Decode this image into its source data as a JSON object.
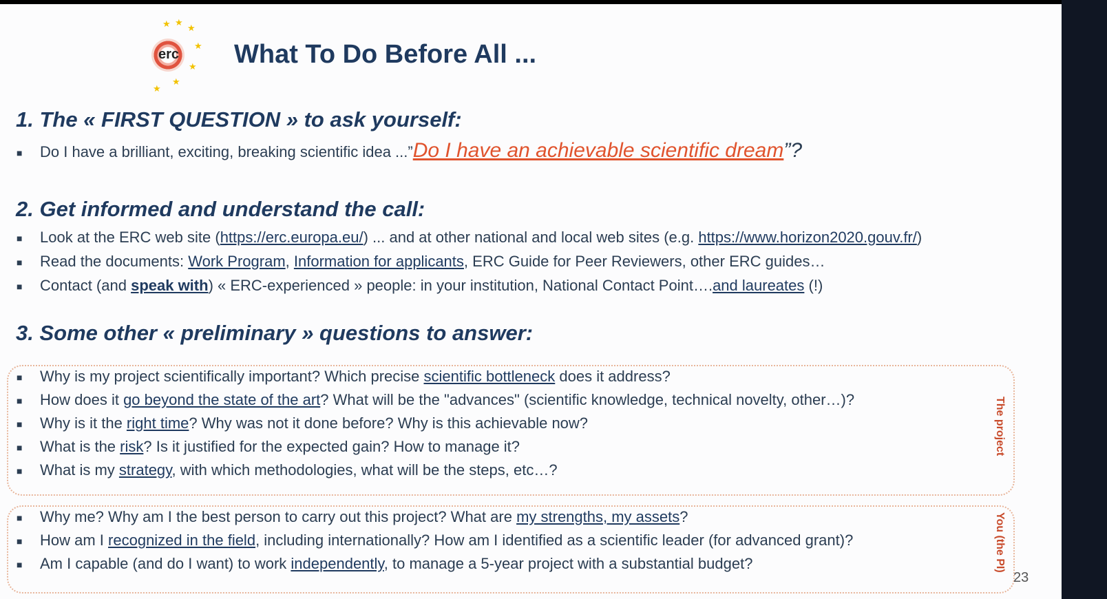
{
  "logo": {
    "text": "erc"
  },
  "title": "What To Do Before All ...",
  "section1": {
    "heading": "1. The « FIRST QUESTION » to ask yourself:",
    "bullet": {
      "text": "Do I have a brilliant, exciting, breaking scientific idea ...”",
      "highlight": "Do I have an achievable scientific dream",
      "suffix": "”?"
    }
  },
  "section2": {
    "heading": "2. Get informed and understand the call:",
    "b1": {
      "pre": "Look at the ERC web site (",
      "link1": "https://erc.europa.eu/",
      "mid": ") ... and at other national and local web sites (e.g. ",
      "link2": "https://www.horizon2020.gouv.fr/",
      "post": ")"
    },
    "b2": {
      "pre": "Read the documents: ",
      "link1": "Work Program",
      "sep": ", ",
      "link2": "Information for applicants",
      "post": ", ERC Guide for Peer Reviewers, other ERC guides…"
    },
    "b3": {
      "pre": "Contact (and ",
      "link1": "speak with",
      "mid": ") « ERC-experienced » people: in your institution, National Contact Point….",
      "link2": "and laureates",
      "post": " (!)"
    }
  },
  "section3": {
    "heading": "3. Some other « preliminary » questions to answer:",
    "project_label": "The project",
    "project": [
      {
        "pre": "Why is my project scientifically important? Which precise ",
        "link": "scientific bottleneck",
        "post": " does it address?"
      },
      {
        "pre": "How does it ",
        "link": "go beyond the state of the art",
        "post": "? What will be the \"advances\" (scientific knowledge, technical novelty, other…)?"
      },
      {
        "pre": "Why is it the ",
        "link": "right time",
        "post": "? Why was not it done before? Why is this achievable now?"
      },
      {
        "pre": "What is the ",
        "link": "risk",
        "post": "? Is it justified for the expected gain? How to manage it?"
      },
      {
        "pre": "What is my ",
        "link": "strategy",
        "post": ", with which methodologies, what will be the steps, etc…?"
      }
    ],
    "pi_label": "You (the PI)",
    "pi": [
      {
        "pre": "Why me? Why am I the best person to carry out this project? What are ",
        "link": "my strengths, my assets",
        "post": "?"
      },
      {
        "pre": "How am I ",
        "link": "recognized in the field",
        "post": ", including internationally? How am I identified as a scientific leader (for advanced grant)?"
      },
      {
        "pre": "Am I capable (and do I want) to work ",
        "link": "independently",
        "post": ", to manage a 5-year project with a substantial budget?"
      }
    ]
  },
  "page_number": "23"
}
